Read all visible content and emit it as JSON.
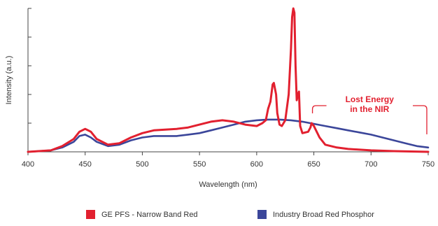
{
  "chart_data": {
    "type": "line",
    "xlabel": "Wavelength (nm)",
    "ylabel": "Intensity (a.u.)",
    "xlim": [
      400,
      750
    ],
    "ylim": [
      0,
      1.0
    ],
    "xticks": [
      "400",
      "450",
      "500",
      "550",
      "600",
      "650",
      "700",
      "750"
    ],
    "xtick_values": [
      400,
      450,
      500,
      550,
      600,
      650,
      700,
      750
    ],
    "y_tick_count": 5,
    "grid": false,
    "legend_position": "bottom",
    "annotation": {
      "lines": [
        "Lost Energy",
        "in the NIR"
      ],
      "bracket_from": 650,
      "bracket_to": 750
    },
    "series": [
      {
        "name": "GE PFS - Narrow Band Red",
        "color": "#e2202f",
        "x": [
          400,
          420,
          430,
          440,
          445,
          450,
          455,
          460,
          470,
          480,
          490,
          500,
          510,
          520,
          530,
          540,
          550,
          560,
          570,
          580,
          590,
          600,
          605,
          608,
          610,
          612,
          614,
          615,
          617,
          618,
          620,
          622,
          625,
          628,
          630,
          631,
          632,
          633,
          634,
          635,
          636,
          637,
          638,
          640,
          645,
          647,
          648,
          650,
          655,
          660,
          670,
          680,
          700,
          720,
          750
        ],
        "y": [
          0.0,
          0.01,
          0.04,
          0.09,
          0.14,
          0.16,
          0.14,
          0.09,
          0.05,
          0.06,
          0.1,
          0.13,
          0.15,
          0.155,
          0.16,
          0.17,
          0.19,
          0.21,
          0.22,
          0.21,
          0.19,
          0.18,
          0.2,
          0.22,
          0.3,
          0.35,
          0.47,
          0.48,
          0.4,
          0.27,
          0.19,
          0.18,
          0.22,
          0.4,
          0.72,
          0.94,
          1.0,
          0.97,
          0.6,
          0.36,
          0.4,
          0.42,
          0.18,
          0.13,
          0.14,
          0.17,
          0.2,
          0.18,
          0.1,
          0.05,
          0.03,
          0.02,
          0.01,
          0.005,
          0.0
        ]
      },
      {
        "name": "Industry Broad Red Phosphor",
        "color": "#3b469a",
        "x": [
          400,
          420,
          430,
          440,
          445,
          450,
          455,
          460,
          470,
          480,
          490,
          500,
          510,
          520,
          530,
          540,
          550,
          560,
          570,
          580,
          590,
          600,
          610,
          620,
          630,
          640,
          650,
          660,
          670,
          680,
          690,
          700,
          710,
          720,
          730,
          740,
          750
        ],
        "y": [
          0.0,
          0.01,
          0.03,
          0.07,
          0.11,
          0.12,
          0.1,
          0.07,
          0.04,
          0.05,
          0.08,
          0.1,
          0.11,
          0.11,
          0.11,
          0.12,
          0.13,
          0.15,
          0.17,
          0.19,
          0.21,
          0.22,
          0.225,
          0.225,
          0.22,
          0.21,
          0.195,
          0.18,
          0.165,
          0.15,
          0.135,
          0.12,
          0.1,
          0.08,
          0.06,
          0.04,
          0.03
        ]
      }
    ]
  }
}
